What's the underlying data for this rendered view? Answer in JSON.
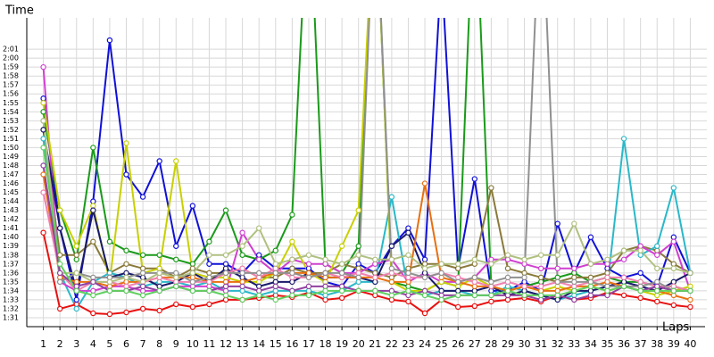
{
  "chart_data": {
    "type": "line",
    "y_label": "Time",
    "x_label": "Laps",
    "x": [
      1,
      2,
      3,
      4,
      5,
      6,
      7,
      8,
      9,
      10,
      11,
      12,
      13,
      14,
      15,
      16,
      17,
      18,
      19,
      20,
      21,
      22,
      23,
      24,
      25,
      26,
      27,
      28,
      29,
      30,
      31,
      32,
      33,
      34,
      35,
      36,
      37,
      38,
      39,
      40
    ],
    "xlim": [
      0,
      41
    ],
    "xticks": [
      1,
      2,
      3,
      4,
      5,
      6,
      7,
      8,
      9,
      10,
      11,
      12,
      13,
      14,
      15,
      16,
      17,
      18,
      19,
      20,
      21,
      22,
      23,
      24,
      25,
      26,
      27,
      28,
      29,
      30,
      31,
      32,
      33,
      34,
      35,
      36,
      37,
      38,
      39,
      40
    ],
    "ylim": [
      90,
      124.5
    ],
    "yticks": [
      {
        "value": 91,
        "label": "1:31"
      },
      {
        "value": 92,
        "label": "1:32"
      },
      {
        "value": 93,
        "label": "1:33"
      },
      {
        "value": 94,
        "label": "1:34"
      },
      {
        "value": 95,
        "label": "1:35"
      },
      {
        "value": 96,
        "label": "1:36"
      },
      {
        "value": 97,
        "label": "1:37"
      },
      {
        "value": 98,
        "label": "1:38"
      },
      {
        "value": 99,
        "label": "1:39"
      },
      {
        "value": 100,
        "label": "1:40"
      },
      {
        "value": 101,
        "label": "1:41"
      },
      {
        "value": 102,
        "label": "1:42"
      },
      {
        "value": 103,
        "label": "1:43"
      },
      {
        "value": 104,
        "label": "1:44"
      },
      {
        "value": 105,
        "label": "1:45"
      },
      {
        "value": 106,
        "label": "1:46"
      },
      {
        "value": 107,
        "label": "1:47"
      },
      {
        "value": 108,
        "label": "1:48"
      },
      {
        "value": 109,
        "label": "1:49"
      },
      {
        "value": 110,
        "label": "1:50"
      },
      {
        "value": 111,
        "label": "1:51"
      },
      {
        "value": 112,
        "label": "1:52"
      },
      {
        "value": 113,
        "label": "1:53"
      },
      {
        "value": 114,
        "label": "1:54"
      },
      {
        "value": 115,
        "label": "1:55"
      },
      {
        "value": 116,
        "label": "1:56"
      },
      {
        "value": 117,
        "label": "1:57"
      },
      {
        "value": 118,
        "label": "1:58"
      },
      {
        "value": 119,
        "label": "1:59"
      },
      {
        "value": 120,
        "label": "2:00"
      },
      {
        "value": 121,
        "label": "2:01"
      }
    ],
    "grid": true,
    "series": [
      {
        "color": "#e81010",
        "values": [
          100.5,
          92,
          92.5,
          91.5,
          91.4,
          91.6,
          92,
          91.8,
          92.5,
          92.2,
          92.5,
          93,
          93,
          93.2,
          93.5,
          93.3,
          93.8,
          93,
          93.2,
          94,
          93.5,
          93,
          92.8,
          91.5,
          93,
          92.2,
          92.3,
          92.8,
          93,
          93.2,
          92.8,
          93.5,
          93,
          93.2,
          93.8,
          93.5,
          93.2,
          92.8,
          92.4,
          92.2
        ]
      },
      {
        "color": "#1010d8",
        "values": [
          115.5,
          101,
          93,
          104,
          122,
          107,
          104.5,
          108.5,
          99,
          103.5,
          97,
          97,
          96,
          98,
          96.5,
          96.5,
          96.5,
          95,
          94.5,
          97,
          96,
          99,
          101,
          97.5,
          130,
          96.5,
          106.5,
          94,
          94,
          95,
          94,
          101.5,
          96,
          100,
          96.5,
          95.5,
          96,
          94.5,
          100,
          96
        ]
      },
      {
        "color": "#1a9a1a",
        "values": [
          114,
          103,
          97.5,
          110,
          99.5,
          98.5,
          98,
          98,
          97.5,
          97,
          99.5,
          103,
          98,
          97.5,
          98.5,
          102.5,
          140,
          97,
          96,
          99,
          140,
          95,
          94.5,
          94,
          95,
          94.5,
          140,
          94.5,
          94,
          94.5,
          95,
          95.5,
          96,
          95,
          95.5,
          95,
          95,
          94.5,
          94.5,
          94
        ]
      },
      {
        "color": "#8a7a3a",
        "values": [
          112,
          98,
          98,
          99.5,
          96,
          97,
          96.5,
          96.5,
          95.5,
          96.5,
          96,
          96,
          96.5,
          95.5,
          95.5,
          96.5,
          96,
          96,
          97,
          96.5,
          96,
          95.5,
          96.5,
          97,
          97,
          96.5,
          97,
          105.5,
          96.5,
          96,
          95.5,
          95,
          95.5,
          95.5,
          96,
          98.5,
          99,
          98.5,
          97,
          96
        ]
      },
      {
        "color": "#2ab8c8",
        "values": [
          111,
          96,
          92,
          95,
          96,
          95.5,
          94.5,
          95,
          95,
          94.5,
          95,
          94,
          94,
          93.5,
          94,
          94,
          94,
          93.5,
          94,
          95,
          95,
          104.5,
          94,
          93.5,
          94,
          94,
          93.5,
          93.5,
          94.5,
          94,
          93.5,
          93,
          93.5,
          94,
          94.5,
          111,
          98,
          99,
          105.5,
          96
        ]
      },
      {
        "color": "#d040d0",
        "values": [
          119,
          95,
          94,
          94,
          94.5,
          94.5,
          94,
          94,
          94.5,
          94.5,
          94.5,
          94,
          100.5,
          97.5,
          96,
          97.5,
          97,
          97,
          96,
          96,
          97,
          97.5,
          95,
          96,
          95,
          95,
          95.5,
          97.5,
          97.5,
          97,
          96.5,
          96.5,
          96.5,
          97,
          97,
          97.5,
          99,
          98,
          99.5,
          94
        ]
      },
      {
        "color": "#c8d000",
        "values": [
          115,
          103,
          99,
          103.5,
          95,
          110.5,
          96,
          96.5,
          108.5,
          96,
          95.5,
          95.5,
          95,
          95,
          96,
          99.5,
          96,
          95,
          99,
          103,
          140,
          95,
          94,
          94,
          95,
          94.5,
          95.5,
          94.5,
          94,
          94.5,
          94,
          94.5,
          94,
          94.5,
          94,
          94.5,
          94,
          93.5,
          94,
          94.5
        ]
      },
      {
        "color": "#1a1a6a",
        "values": [
          112,
          101,
          94,
          103,
          95.5,
          96,
          95.5,
          94.5,
          95,
          96,
          95,
          96.5,
          95.5,
          94.5,
          95,
          95,
          96,
          95.5,
          95.5,
          95.5,
          95,
          99,
          100.5,
          96,
          94,
          94,
          94,
          94.5,
          93.5,
          94,
          93.5,
          93,
          94,
          94,
          94.5,
          95,
          94.5,
          94,
          95,
          96
        ]
      },
      {
        "color": "#e87010",
        "values": [
          107,
          95.5,
          95,
          95,
          94.5,
          95,
          95,
          95.5,
          95.5,
          95.5,
          95,
          95,
          95,
          95.5,
          96,
          96,
          96,
          95.5,
          95.5,
          95.5,
          95.5,
          95,
          95,
          106,
          95.5,
          95,
          94.5,
          94.5,
          94,
          94.5,
          94,
          94,
          94.5,
          94.5,
          95,
          94.5,
          94,
          94,
          93.5,
          93
        ]
      },
      {
        "color": "#f080b0",
        "values": [
          105,
          96,
          94,
          95,
          95,
          94.5,
          95,
          95.5,
          95,
          95,
          95,
          96,
          96.5,
          95.5,
          96.5,
          95.5,
          95.5,
          96,
          95.5,
          96,
          95.5,
          96,
          95.5,
          95.5,
          96,
          95.5,
          95,
          94.5,
          95,
          94.5,
          94.5,
          95,
          94.5,
          95,
          95.5,
          95.5,
          95,
          94.5,
          94.5,
          94
        ]
      },
      {
        "color": "#909090",
        "values": [
          113,
          95,
          96,
          95.5,
          95.5,
          95.5,
          96,
          96,
          96,
          95,
          95.5,
          96,
          96,
          96,
          96,
          96,
          95.5,
          96,
          96,
          95.5,
          140,
          96.5,
          96,
          95.5,
          96,
          95,
          95.5,
          95,
          95.5,
          95.5,
          140,
          95,
          95,
          95,
          94.5,
          94.5,
          94.5,
          95,
          94,
          94
        ]
      },
      {
        "color": "#b0c080",
        "values": [
          113,
          96,
          96,
          95,
          95,
          95.5,
          95,
          96,
          95.5,
          96,
          98,
          98,
          99,
          101,
          97,
          97.5,
          98,
          97.5,
          97,
          98,
          97.5,
          97.5,
          98,
          96.5,
          97,
          97,
          97.5,
          97,
          98,
          97.5,
          98,
          98,
          101.5,
          97,
          97.5,
          98.5,
          98.5,
          96.5,
          96.5,
          96
        ]
      },
      {
        "color": "#9040a0",
        "values": [
          108,
          96,
          94.5,
          95,
          94,
          94,
          94.5,
          94,
          94.5,
          94,
          94,
          94.5,
          94.5,
          94,
          94.5,
          94,
          94.5,
          94.5,
          94.5,
          94,
          94,
          94,
          93.5,
          94,
          93.5,
          93.5,
          93.5,
          93.5,
          93.5,
          93.5,
          93,
          93.5,
          93,
          93.5,
          93.5,
          94.5,
          94,
          94.5,
          94,
          94
        ]
      },
      {
        "color": "#60d060",
        "values": [
          110,
          97,
          94,
          93.5,
          94,
          94,
          93.5,
          94,
          94.5,
          94,
          94,
          93.5,
          93,
          93.5,
          93,
          93.5,
          93.5,
          94,
          94,
          94,
          94,
          93.5,
          94,
          93.5,
          93,
          93.5,
          93.5,
          93.5,
          94,
          93.5,
          93.5,
          93.5,
          94,
          94.5,
          94,
          94.5,
          94,
          94,
          94,
          94
        ]
      }
    ]
  }
}
